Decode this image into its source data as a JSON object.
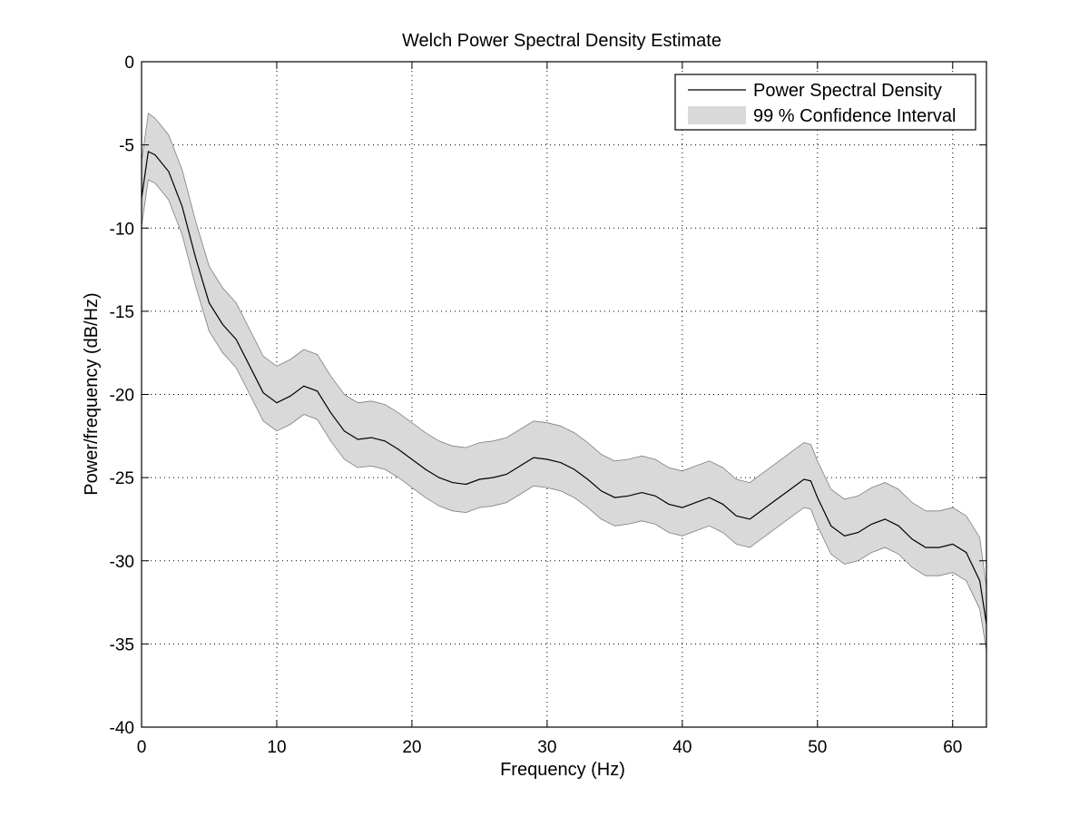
{
  "chart_data": {
    "type": "line",
    "title": "Welch Power Spectral Density Estimate",
    "xlabel": "Frequency (Hz)",
    "ylabel": "Power/frequency (dB/Hz)",
    "xlim": [
      0,
      62.5
    ],
    "ylim": [
      -40,
      0
    ],
    "xticks": [
      0,
      10,
      20,
      30,
      40,
      50,
      60
    ],
    "yticks": [
      0,
      -5,
      -10,
      -15,
      -20,
      -25,
      -30,
      -35,
      -40
    ],
    "xtick_labels": [
      "0",
      "10",
      "20",
      "30",
      "40",
      "50",
      "60"
    ],
    "ytick_labels": [
      "0",
      "-5",
      "-10",
      "-15",
      "-20",
      "-25",
      "-30",
      "-35",
      "-40"
    ],
    "grid": true,
    "grid_style": "dotted",
    "legend_position": "top-right",
    "colors": {
      "line": "#000000",
      "band": "#d9d9d9",
      "band_edge": "#7f7f7f"
    },
    "x": [
      0,
      0.5,
      1,
      2,
      3,
      4,
      5,
      6,
      7,
      8,
      9,
      10,
      11,
      12,
      13,
      14,
      15,
      16,
      17,
      18,
      19,
      20,
      21,
      22,
      23,
      24,
      25,
      26,
      27,
      28,
      29,
      30,
      31,
      32,
      33,
      34,
      35,
      36,
      37,
      38,
      39,
      40,
      41,
      42,
      43,
      44,
      45,
      46,
      47,
      48,
      49,
      49.5,
      50,
      51,
      52,
      53,
      54,
      55,
      56,
      57,
      58,
      59,
      60,
      61,
      62,
      62.5
    ],
    "series": [
      {
        "name": "Power Spectral Density",
        "values": [
          -8.2,
          -5.4,
          -5.6,
          -6.6,
          -8.7,
          -11.8,
          -14.5,
          -15.8,
          -16.7,
          -18.3,
          -19.9,
          -20.5,
          -20.1,
          -19.5,
          -19.8,
          -21.1,
          -22.2,
          -22.7,
          -22.6,
          -22.8,
          -23.3,
          -23.9,
          -24.5,
          -25.0,
          -25.3,
          -25.4,
          -25.1,
          -25.0,
          -24.8,
          -24.3,
          -23.8,
          -23.9,
          -24.1,
          -24.5,
          -25.1,
          -25.8,
          -26.2,
          -26.1,
          -25.9,
          -26.1,
          -26.6,
          -26.8,
          -26.5,
          -26.2,
          -26.6,
          -27.3,
          -27.5,
          -26.9,
          -26.3,
          -25.7,
          -25.1,
          -25.2,
          -26.2,
          -27.9,
          -28.5,
          -28.3,
          -27.8,
          -27.5,
          -27.9,
          -28.7,
          -29.2,
          -29.2,
          -29.0,
          -29.5,
          -31.2,
          -33.8
        ]
      }
    ],
    "confidence_interval": {
      "name": "99 % Confidence Interval",
      "upper": [
        -6.0,
        -3.1,
        -3.4,
        -4.4,
        -6.5,
        -9.6,
        -12.3,
        -13.6,
        -14.5,
        -16.1,
        -17.7,
        -18.3,
        -17.9,
        -17.3,
        -17.6,
        -18.9,
        -20.0,
        -20.5,
        -20.4,
        -20.6,
        -21.1,
        -21.7,
        -22.3,
        -22.8,
        -23.1,
        -23.2,
        -22.9,
        -22.8,
        -22.6,
        -22.1,
        -21.6,
        -21.7,
        -21.9,
        -22.3,
        -22.9,
        -23.6,
        -24.0,
        -23.9,
        -23.7,
        -23.9,
        -24.4,
        -24.6,
        -24.3,
        -24.0,
        -24.4,
        -25.1,
        -25.3,
        -24.7,
        -24.1,
        -23.5,
        -22.9,
        -23.0,
        -24.0,
        -25.7,
        -26.3,
        -26.1,
        -25.6,
        -25.3,
        -25.7,
        -26.5,
        -27.0,
        -27.0,
        -26.8,
        -27.3,
        -28.6,
        -31.6
      ],
      "lower": [
        -9.9,
        -7.1,
        -7.3,
        -8.3,
        -10.4,
        -13.5,
        -16.2,
        -17.5,
        -18.4,
        -20.0,
        -21.6,
        -22.2,
        -21.8,
        -21.2,
        -21.5,
        -22.8,
        -23.9,
        -24.4,
        -24.3,
        -24.5,
        -25.0,
        -25.6,
        -26.2,
        -26.7,
        -27.0,
        -27.1,
        -26.8,
        -26.7,
        -26.5,
        -26.0,
        -25.5,
        -25.6,
        -25.8,
        -26.2,
        -26.8,
        -27.5,
        -27.9,
        -27.8,
        -27.6,
        -27.8,
        -28.3,
        -28.5,
        -28.2,
        -27.9,
        -28.3,
        -29.0,
        -29.2,
        -28.6,
        -28.0,
        -27.4,
        -26.8,
        -26.9,
        -27.9,
        -29.6,
        -30.2,
        -30.0,
        -29.5,
        -29.2,
        -29.6,
        -30.4,
        -30.9,
        -30.9,
        -30.7,
        -31.2,
        -32.9,
        -35.4
      ]
    }
  }
}
